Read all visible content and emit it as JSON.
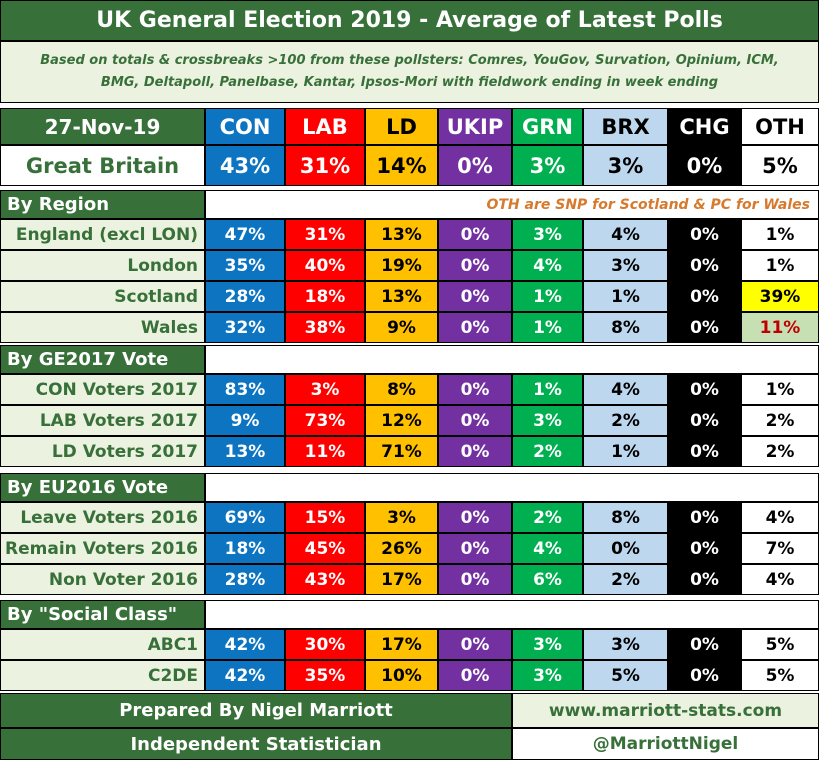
{
  "title": "UK General Election 2019 - Average of Latest Polls",
  "subtitle_line1": "Based on totals & crossbreaks >100 from these pollsters: Comres, YouGov, Survation, Opinium, ICM,",
  "subtitle_line2": "BMG, Deltapoll, Panelbase, Kantar, Ipsos-Mori with fieldwork ending in week ending",
  "date": "27-Nov-19",
  "note": "OTH are SNP for Scotland & PC for Wales",
  "footer": {
    "prepared_by": "Prepared By Nigel Marriott",
    "role": "Independent Statistician",
    "website": "www.marriott-stats.com",
    "handle": "@MarriottNigel"
  },
  "colors": {
    "dark_green": "#38703a",
    "light_green_bg": "#ebf2df",
    "CON": "#0c74c1",
    "LAB": "#fe0000",
    "LD": "#ffc000",
    "UKIP": "#7230a0",
    "GRN": "#00b050",
    "BRX": "#bdd7ee",
    "CHG": "#000000",
    "OTH": "#ffffff",
    "scotland_oth_highlight": "#ffff00",
    "wales_oth_highlight": "#c6e0b4",
    "wales_oth_text": "#c00000"
  },
  "chart_data": {
    "type": "table",
    "title": "UK General Election 2019 - Average of Latest Polls",
    "columns": [
      "CON",
      "LAB",
      "LD",
      "UKIP",
      "GRN",
      "BRX",
      "CHG",
      "OTH"
    ],
    "unit": "%",
    "overall": {
      "label": "Great Britain",
      "values": [
        43,
        31,
        14,
        0,
        3,
        3,
        0,
        5
      ]
    },
    "groups": [
      {
        "name": "By Region",
        "rows": [
          {
            "label": "England (excl LON)",
            "values": [
              47,
              31,
              13,
              0,
              3,
              4,
              0,
              1
            ]
          },
          {
            "label": "London",
            "values": [
              35,
              40,
              19,
              0,
              4,
              3,
              0,
              1
            ]
          },
          {
            "label": "Scotland",
            "values": [
              28,
              18,
              13,
              0,
              1,
              1,
              0,
              39
            ]
          },
          {
            "label": "Wales",
            "values": [
              32,
              38,
              9,
              0,
              1,
              8,
              0,
              11
            ]
          }
        ]
      },
      {
        "name": "By GE2017 Vote",
        "rows": [
          {
            "label": "CON Voters 2017",
            "values": [
              83,
              3,
              8,
              0,
              1,
              4,
              0,
              1
            ]
          },
          {
            "label": "LAB Voters 2017",
            "values": [
              9,
              73,
              12,
              0,
              3,
              2,
              0,
              2
            ]
          },
          {
            "label": "LD Voters 2017",
            "values": [
              13,
              11,
              71,
              0,
              2,
              1,
              0,
              2
            ]
          }
        ]
      },
      {
        "name": "By EU2016 Vote",
        "rows": [
          {
            "label": "Leave Voters 2016",
            "values": [
              69,
              15,
              3,
              0,
              2,
              8,
              0,
              4
            ]
          },
          {
            "label": "Remain Voters 2016",
            "values": [
              18,
              45,
              26,
              0,
              4,
              0,
              0,
              7
            ]
          },
          {
            "label": "Non Voter 2016",
            "values": [
              28,
              43,
              17,
              0,
              6,
              2,
              0,
              4
            ]
          }
        ]
      },
      {
        "name": "By \"Social Class\"",
        "rows": [
          {
            "label": "ABC1",
            "values": [
              42,
              30,
              17,
              0,
              3,
              3,
              0,
              5
            ]
          },
          {
            "label": "C2DE",
            "values": [
              42,
              35,
              10,
              0,
              3,
              5,
              0,
              5
            ]
          }
        ]
      }
    ]
  }
}
